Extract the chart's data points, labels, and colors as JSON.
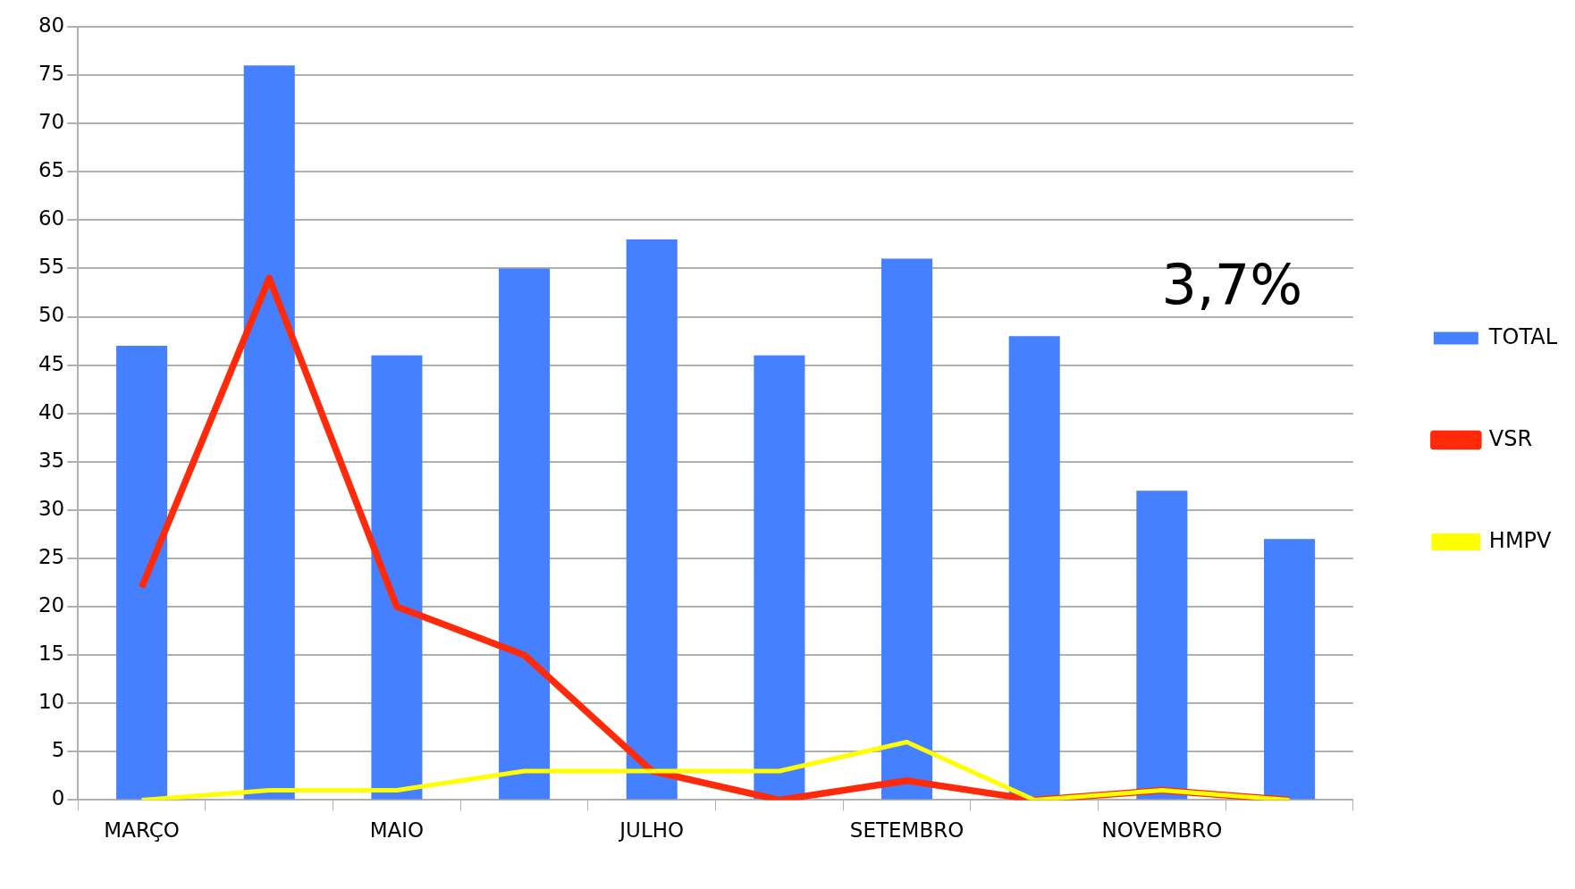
{
  "chart_data": {
    "type": "bar",
    "categories": [
      "MARÇO",
      null,
      "MAIO",
      null,
      "JULHO",
      null,
      "SETEMBRO",
      null,
      "NOVEMBRO",
      null
    ],
    "series": [
      {
        "name": "TOTAL",
        "color": "#4480ff",
        "values": [
          47,
          76,
          46,
          55,
          58,
          46,
          56,
          48,
          32,
          27
        ]
      },
      {
        "name": "VSR",
        "type": "line",
        "color": "#ff2a0a",
        "values": [
          22,
          54,
          20,
          15,
          3,
          0,
          2,
          0,
          1,
          0
        ]
      },
      {
        "name": "HMPV",
        "type": "line",
        "color": "#ffff00",
        "values": [
          0,
          1,
          1,
          3,
          3,
          3,
          6,
          0,
          1,
          0
        ]
      }
    ],
    "ylim": [
      0,
      80
    ],
    "yticks": [
      0,
      5,
      10,
      15,
      20,
      25,
      30,
      35,
      40,
      45,
      50,
      55,
      60,
      65,
      70,
      75,
      80
    ],
    "grid": "y",
    "legend": "right",
    "marker": "none",
    "annotations": [
      "3,7%"
    ]
  }
}
